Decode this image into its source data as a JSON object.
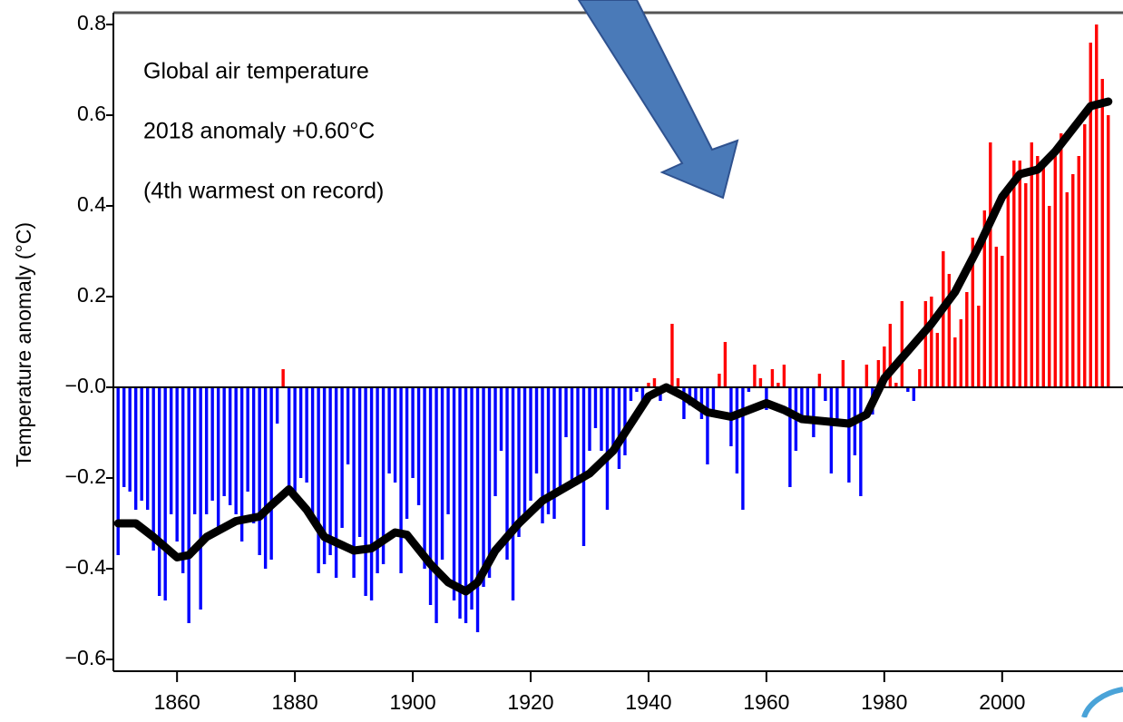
{
  "chart_data": {
    "type": "bar",
    "annotations": [
      "Global air temperature",
      "2018 anomaly +0.60°C",
      "(4th warmest on record)"
    ],
    "ylabel": "Temperature anomaly (°C)",
    "x": [
      1850,
      1851,
      1852,
      1853,
      1854,
      1855,
      1856,
      1857,
      1858,
      1859,
      1860,
      1861,
      1862,
      1863,
      1864,
      1865,
      1866,
      1867,
      1868,
      1869,
      1870,
      1871,
      1872,
      1873,
      1874,
      1875,
      1876,
      1877,
      1878,
      1879,
      1880,
      1881,
      1882,
      1883,
      1884,
      1885,
      1886,
      1887,
      1888,
      1889,
      1890,
      1891,
      1892,
      1893,
      1894,
      1895,
      1896,
      1897,
      1898,
      1899,
      1900,
      1901,
      1902,
      1903,
      1904,
      1905,
      1906,
      1907,
      1908,
      1909,
      1910,
      1911,
      1912,
      1913,
      1914,
      1915,
      1916,
      1917,
      1918,
      1919,
      1920,
      1921,
      1922,
      1923,
      1924,
      1925,
      1926,
      1927,
      1928,
      1929,
      1930,
      1931,
      1932,
      1933,
      1934,
      1935,
      1936,
      1937,
      1938,
      1939,
      1940,
      1941,
      1942,
      1943,
      1944,
      1945,
      1946,
      1947,
      1948,
      1949,
      1950,
      1951,
      1952,
      1953,
      1954,
      1955,
      1956,
      1957,
      1958,
      1959,
      1960,
      1961,
      1962,
      1963,
      1964,
      1965,
      1966,
      1967,
      1968,
      1969,
      1970,
      1971,
      1972,
      1973,
      1974,
      1975,
      1976,
      1977,
      1978,
      1979,
      1980,
      1981,
      1982,
      1983,
      1984,
      1985,
      1986,
      1987,
      1988,
      1989,
      1990,
      1991,
      1992,
      1993,
      1994,
      1995,
      1996,
      1997,
      1998,
      1999,
      2000,
      2001,
      2002,
      2003,
      2004,
      2005,
      2006,
      2007,
      2008,
      2009,
      2010,
      2011,
      2012,
      2013,
      2014,
      2015,
      2016,
      2017,
      2018
    ],
    "values": [
      -0.37,
      -0.22,
      -0.23,
      -0.27,
      -0.25,
      -0.27,
      -0.36,
      -0.46,
      -0.47,
      -0.28,
      -0.34,
      -0.41,
      -0.52,
      -0.28,
      -0.49,
      -0.28,
      -0.25,
      -0.32,
      -0.24,
      -0.26,
      -0.28,
      -0.34,
      -0.23,
      -0.3,
      -0.37,
      -0.4,
      -0.38,
      -0.08,
      0.04,
      -0.23,
      -0.23,
      -0.2,
      -0.21,
      -0.3,
      -0.41,
      -0.39,
      -0.37,
      -0.42,
      -0.31,
      -0.17,
      -0.42,
      -0.33,
      -0.46,
      -0.47,
      -0.41,
      -0.39,
      -0.19,
      -0.21,
      -0.41,
      -0.29,
      -0.2,
      -0.26,
      -0.4,
      -0.48,
      -0.52,
      -0.38,
      -0.28,
      -0.47,
      -0.51,
      -0.52,
      -0.49,
      -0.54,
      -0.44,
      -0.42,
      -0.24,
      -0.14,
      -0.38,
      -0.47,
      -0.33,
      -0.28,
      -0.25,
      -0.19,
      -0.3,
      -0.28,
      -0.29,
      -0.22,
      -0.11,
      -0.21,
      -0.21,
      -0.35,
      -0.14,
      -0.09,
      -0.14,
      -0.27,
      -0.13,
      -0.18,
      -0.15,
      -0.03,
      -0.01,
      -0.05,
      0.01,
      0.02,
      -0.03,
      -0.01,
      0.14,
      0.02,
      -0.07,
      -0.04,
      -0.04,
      -0.07,
      -0.17,
      -0.05,
      0.03,
      0.1,
      -0.13,
      -0.19,
      -0.27,
      -0.01,
      0.05,
      0.02,
      -0.05,
      0.04,
      0.01,
      0.05,
      -0.22,
      -0.14,
      -0.07,
      -0.07,
      -0.11,
      0.03,
      -0.03,
      -0.19,
      -0.07,
      0.06,
      -0.21,
      -0.15,
      -0.24,
      0.05,
      -0.06,
      0.06,
      0.09,
      0.14,
      0.01,
      0.19,
      -0.01,
      -0.03,
      0.04,
      0.19,
      0.2,
      0.12,
      0.3,
      0.25,
      0.11,
      0.15,
      0.21,
      0.33,
      0.18,
      0.39,
      0.54,
      0.31,
      0.29,
      0.44,
      0.5,
      0.5,
      0.45,
      0.54,
      0.51,
      0.49,
      0.4,
      0.51,
      0.56,
      0.43,
      0.47,
      0.51,
      0.58,
      0.76,
      0.8,
      0.68,
      0.6
    ],
    "positive_color": "#ff0000",
    "negative_color": "#0000ff",
    "smooth": {
      "color": "#000000",
      "x": [
        1850,
        1853,
        1856,
        1860,
        1862,
        1865,
        1870,
        1874,
        1876,
        1879,
        1882,
        1885,
        1890,
        1893,
        1897,
        1899,
        1903,
        1906,
        1909,
        1911,
        1914,
        1918,
        1922,
        1926,
        1930,
        1934,
        1937,
        1940,
        1943,
        1946,
        1950,
        1954,
        1957,
        1960,
        1963,
        1966,
        1970,
        1974,
        1977,
        1980,
        1984,
        1988,
        1992,
        1996,
        2000,
        2003,
        2006,
        2009,
        2012,
        2015,
        2018
      ],
      "values": [
        -0.3,
        -0.3,
        -0.33,
        -0.375,
        -0.37,
        -0.33,
        -0.295,
        -0.285,
        -0.26,
        -0.225,
        -0.27,
        -0.33,
        -0.36,
        -0.355,
        -0.32,
        -0.325,
        -0.39,
        -0.43,
        -0.45,
        -0.43,
        -0.36,
        -0.3,
        -0.25,
        -0.22,
        -0.19,
        -0.14,
        -0.08,
        -0.02,
        0,
        -0.02,
        -0.055,
        -0.065,
        -0.05,
        -0.035,
        -0.05,
        -0.07,
        -0.075,
        -0.08,
        -0.06,
        0.02,
        0.08,
        0.14,
        0.21,
        0.31,
        0.42,
        0.47,
        0.48,
        0.52,
        0.57,
        0.62,
        0.63
      ]
    },
    "xlim": [
      1849.2,
      2020.5
    ],
    "ylim": [
      -0.626,
      0.826
    ],
    "xticks": [
      1860,
      1880,
      1900,
      1920,
      1940,
      1960,
      1980,
      2000
    ],
    "yticks": [
      {
        "value": -0.6,
        "label": "−0.6"
      },
      {
        "value": -0.4,
        "label": "−0.4"
      },
      {
        "value": -0.2,
        "label": "−0.2"
      },
      {
        "value": 0,
        "label": "−0.0"
      },
      0.2,
      0.4,
      0.6,
      0.8
    ]
  }
}
